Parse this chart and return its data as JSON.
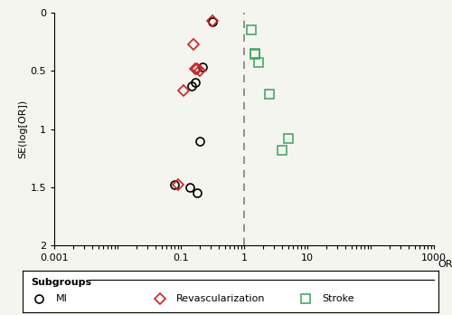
{
  "mi_points": [
    [
      0.08,
      1.48
    ],
    [
      0.15,
      0.63
    ],
    [
      0.17,
      0.6
    ],
    [
      0.22,
      0.47
    ],
    [
      0.32,
      0.08
    ],
    [
      0.2,
      1.1
    ],
    [
      0.14,
      1.5
    ],
    [
      0.18,
      1.55
    ]
  ],
  "revasc_points": [
    [
      0.09,
      1.48
    ],
    [
      0.11,
      0.67
    ],
    [
      0.16,
      0.27
    ],
    [
      0.17,
      0.48
    ],
    [
      0.18,
      0.48
    ],
    [
      0.2,
      0.5
    ],
    [
      0.32,
      0.07
    ]
  ],
  "stroke_points": [
    [
      1.3,
      0.15
    ],
    [
      1.5,
      0.35
    ],
    [
      1.5,
      0.36
    ],
    [
      1.7,
      0.43
    ],
    [
      2.5,
      0.7
    ],
    [
      4.0,
      1.18
    ],
    [
      5.0,
      1.08
    ]
  ],
  "ylim": [
    2.0,
    0.0
  ],
  "yticks": [
    0,
    0.5,
    1.0,
    1.5,
    2.0
  ],
  "ytick_labels": [
    "0",
    "0.5",
    "1",
    "1.5",
    "2"
  ],
  "xtick_vals": [
    0.001,
    0.01,
    0.1,
    1,
    10,
    100,
    1000
  ],
  "xtick_labels": [
    "0.001",
    "",
    "0.1",
    "1",
    "10",
    "",
    "1000"
  ],
  "dashed_x": 1.0,
  "ylabel": "SE(log[OR])",
  "xlabel": "OR",
  "mi_color": "black",
  "revasc_color": "#cc2222",
  "stroke_color": "#44aa66",
  "background_color": "#f5f5f0"
}
